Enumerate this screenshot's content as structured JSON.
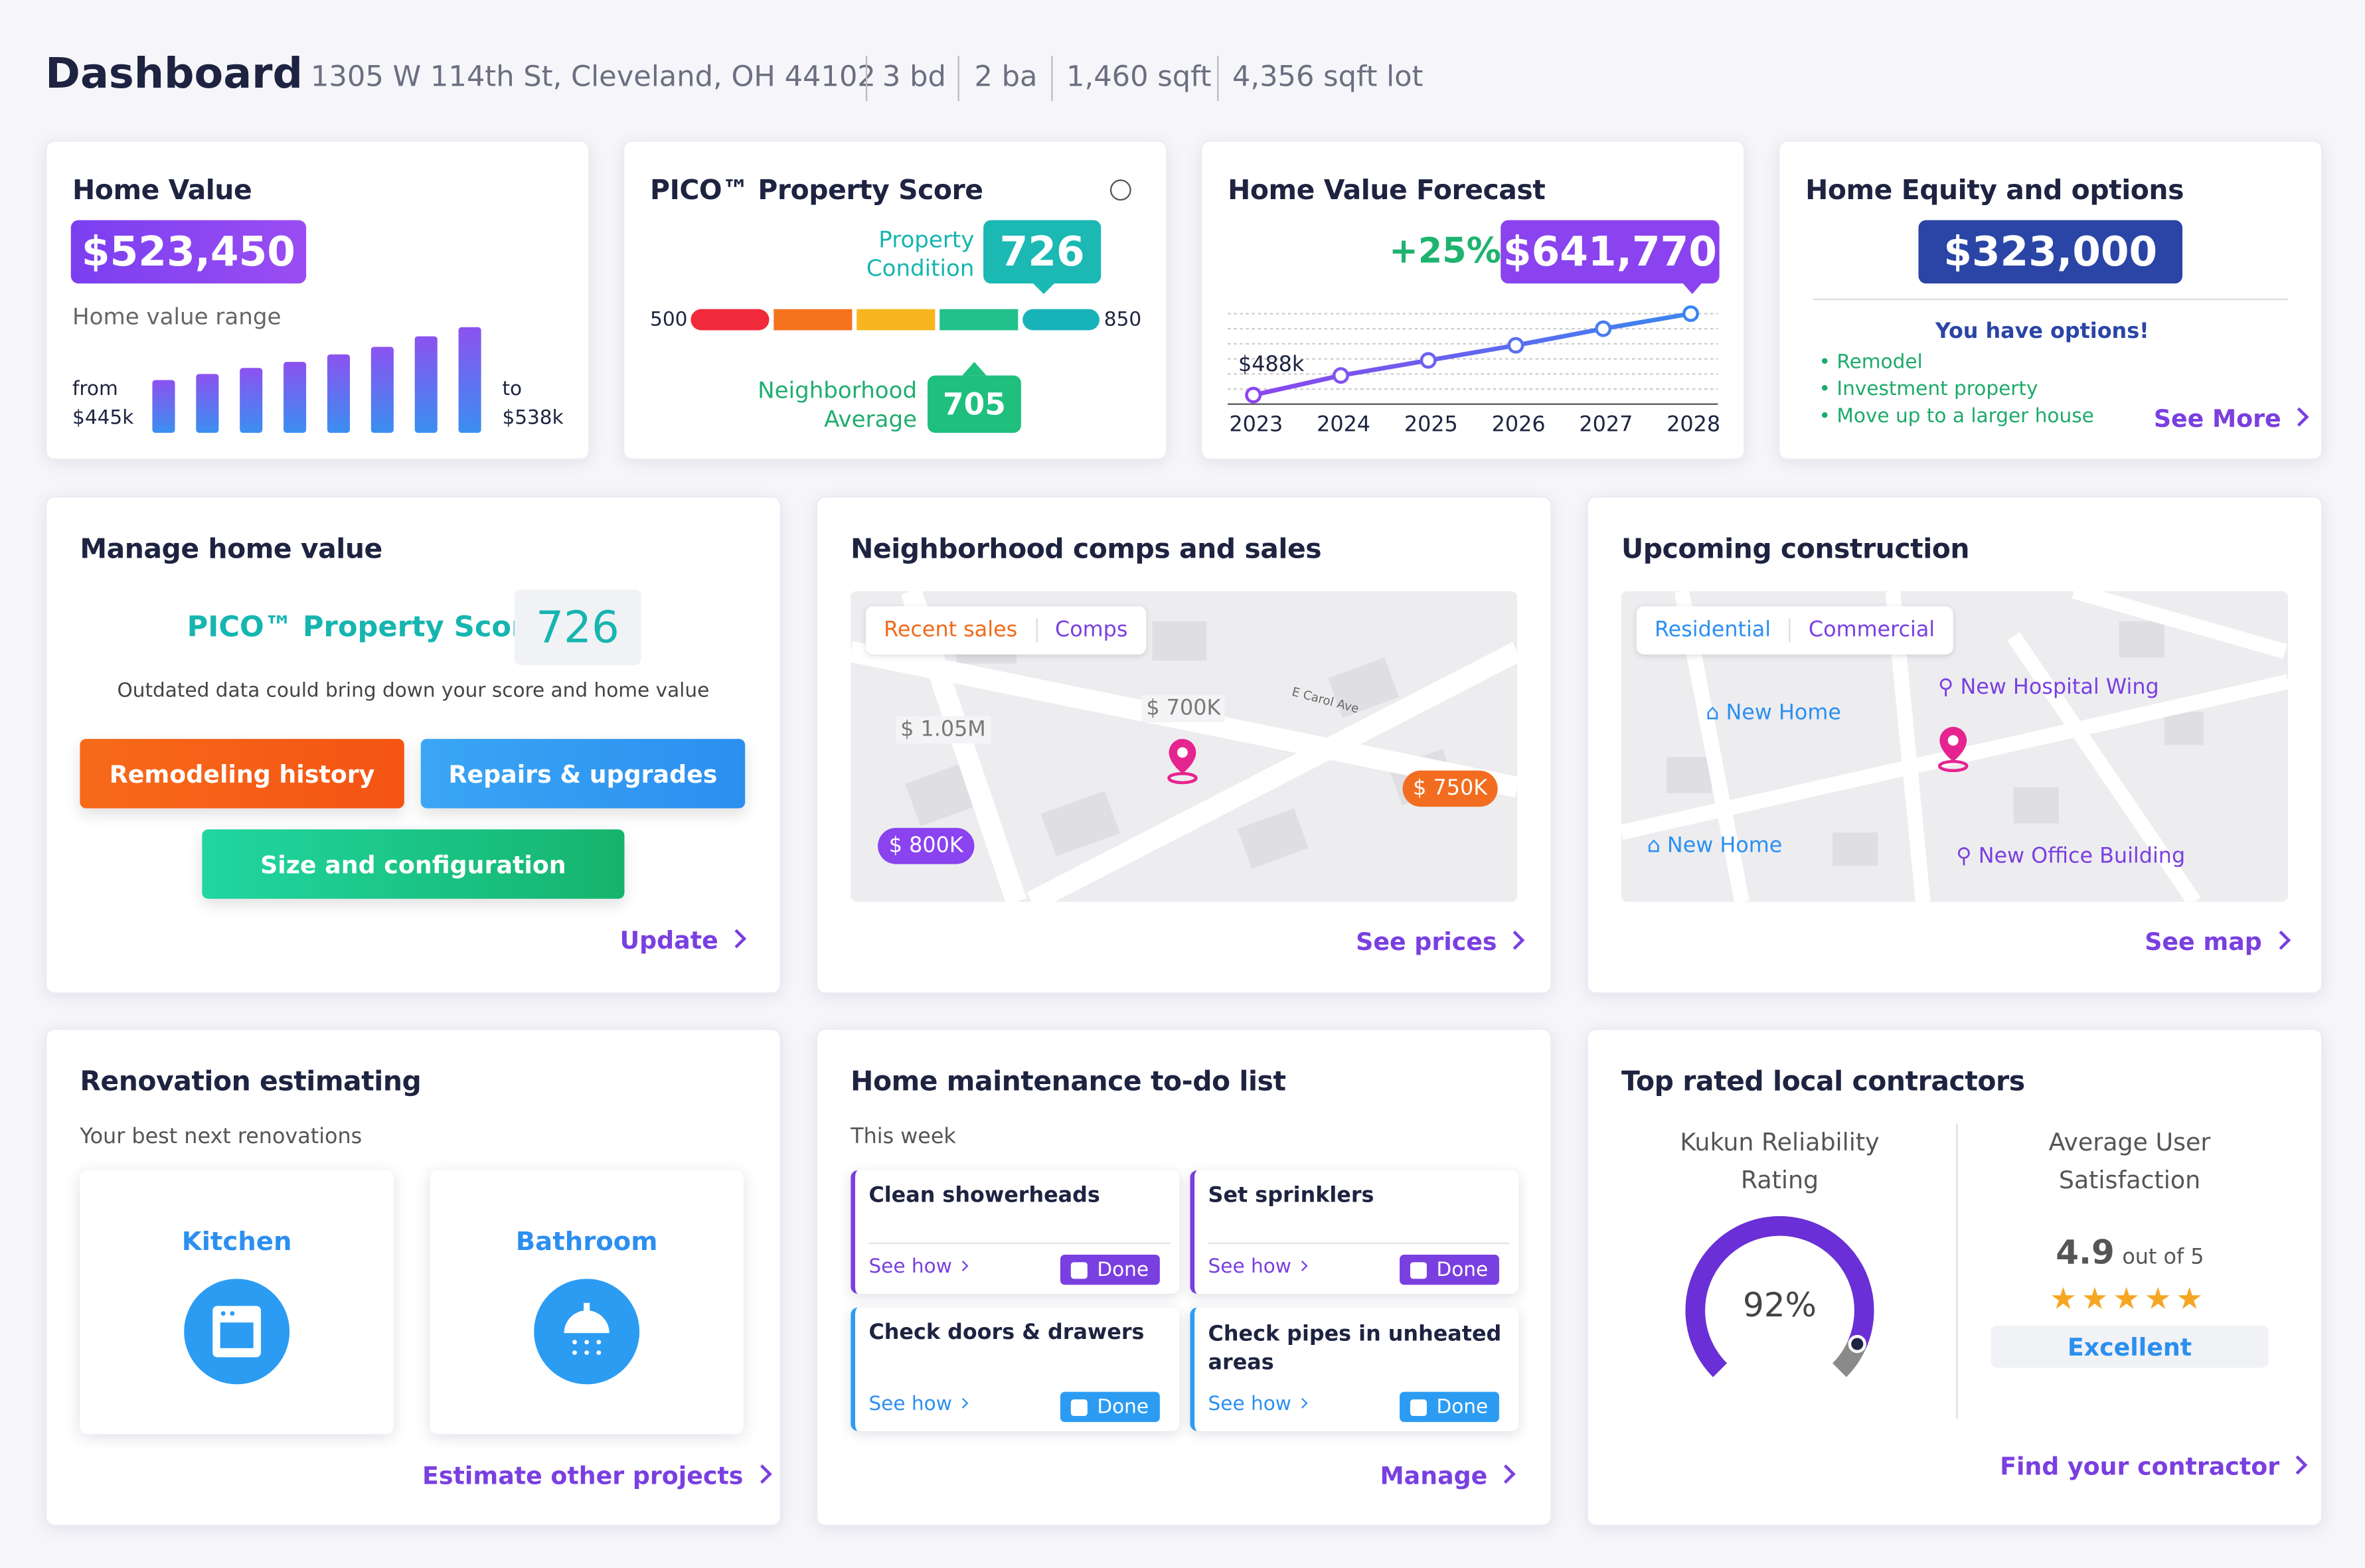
{
  "header": {
    "title": "Dashboard",
    "address": "1305 W 114th St, Cleveland, OH 44102",
    "facts": [
      "3 bd",
      "2 ba",
      "1,460 sqft",
      "4,356 sqft lot"
    ]
  },
  "home_value": {
    "title": "Home Value",
    "value": "$523,450",
    "range_label": "Home value range",
    "from_label": "from",
    "from": "$445k",
    "to_label": "to",
    "to": "$538k"
  },
  "property_score": {
    "title": "PICO™ Property Score",
    "condition_label": "Property Condition",
    "score": 726,
    "min": 500,
    "max": 850,
    "neighborhood_label": "Neighborhood Average",
    "neighborhood": 705
  },
  "forecast": {
    "title": "Home Value Forecast",
    "change": "+25%",
    "value": "$641,770",
    "start": "$488k",
    "years": [
      "2023",
      "2024",
      "2025",
      "2026",
      "2027",
      "2028"
    ]
  },
  "equity": {
    "title": "Home Equity and options",
    "value": "$323,000",
    "subtitle": "You have options!",
    "options": [
      "Remodel",
      "Investment property",
      "Move up to a larger house"
    ],
    "link": "See More"
  },
  "manage": {
    "title": "Manage home value",
    "score_label": "PICO™ Property Score",
    "score": 726,
    "note": "Outdated data could bring down your score and home value",
    "buttons": [
      "Remodeling history",
      "Repairs & upgrades",
      "Size and configuration"
    ],
    "link": "Update"
  },
  "comps": {
    "title": "Neighborhood comps and sales",
    "tabs": [
      "Recent sales",
      "Comps"
    ],
    "street": "E Carol Ave",
    "prices": [
      "$ 1.05M",
      "$ 700K",
      "$ 750K",
      "$ 800K"
    ],
    "link": "See prices"
  },
  "construction": {
    "title": "Upcoming construction",
    "tabs": [
      "Residential",
      "Commercial"
    ],
    "places": [
      "New Home",
      "New Hospital Wing",
      "New Home",
      "New Office Building"
    ],
    "link": "See map"
  },
  "renovation": {
    "title": "Renovation estimating",
    "subtitle": "Your best next renovations",
    "items": [
      "Kitchen",
      "Bathroom"
    ],
    "link": "Estimate other projects"
  },
  "maintenance": {
    "title": "Home maintenance to-do list",
    "subtitle": "This week",
    "tasks": [
      "Clean showerheads",
      "Set sprinklers",
      "Check doors & drawers",
      "Check pipes in unheated areas"
    ],
    "see_how": "See how",
    "done": "Done",
    "link": "Manage"
  },
  "contractors": {
    "title": "Top rated local contractors",
    "reliability_label": "Kukun Reliability Rating",
    "reliability": {
      "value": 92,
      "label": "92%"
    },
    "satisfaction_label": "Average User Satisfaction",
    "rating": 4.9,
    "rating_suffix": "out of 5",
    "rating_word": "Excellent",
    "link": "Find your contractor"
  }
}
